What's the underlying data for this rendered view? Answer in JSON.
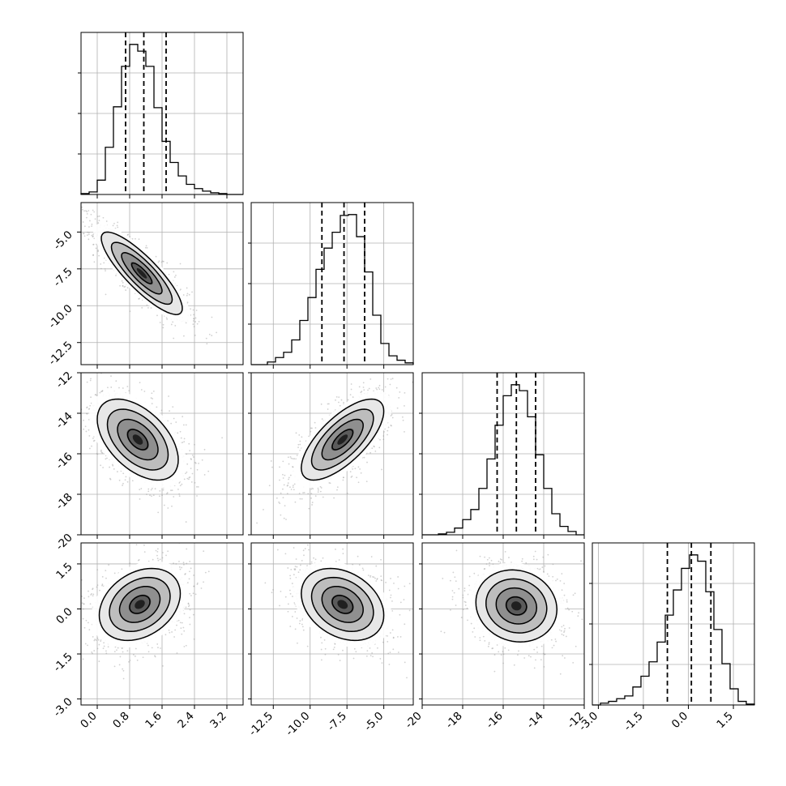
{
  "figure": {
    "type": "corner_plot",
    "n_params": 4,
    "grid": true,
    "colors": {
      "ink": "#000000",
      "grid": "#b0b0b0",
      "scatter": "#9a9a9a",
      "hist_fill": "#555555"
    }
  },
  "chart_data": [
    {
      "type": "histogram",
      "param": 0,
      "xlim": [
        -0.4,
        3.6
      ],
      "bins": [
        -0.4,
        -0.2,
        0.0,
        0.2,
        0.4,
        0.6,
        0.8,
        1.0,
        1.2,
        1.4,
        1.6,
        1.8,
        2.0,
        2.2,
        2.4,
        2.6,
        2.8,
        3.0,
        3.2,
        3.4,
        3.6
      ],
      "counts": [
        1,
        3,
        17,
        56,
        104,
        152,
        178,
        170,
        152,
        103,
        63,
        38,
        22,
        12,
        7,
        4,
        2,
        1,
        0,
        0
      ],
      "quantiles": [
        0.7,
        1.15,
        1.7
      ],
      "tick_labels": [
        "0.0",
        "0.8",
        "1.6",
        "2.4",
        "3.2"
      ],
      "tick_values": [
        0.0,
        0.8,
        1.6,
        2.4,
        3.2
      ]
    },
    {
      "type": "histogram",
      "param": 1,
      "xlim": [
        -14.0,
        -3.0
      ],
      "bins": [
        -14.0,
        -13.45,
        -12.9,
        -12.35,
        -11.8,
        -11.25,
        -10.7,
        -10.15,
        -9.6,
        -9.05,
        -8.5,
        -7.95,
        -7.4,
        -6.85,
        -6.3,
        -5.75,
        -5.2,
        -4.65,
        -4.1,
        -3.55,
        -3.0
      ],
      "counts": [
        0,
        0,
        3,
        8,
        14,
        28,
        50,
        76,
        108,
        132,
        150,
        169,
        170,
        145,
        105,
        56,
        24,
        10,
        5,
        2
      ],
      "quantiles": [
        -9.2,
        -7.7,
        -6.3
      ],
      "tick_labels": [
        "-12.5",
        "-10.0",
        "-7.5",
        "-5.0"
      ],
      "tick_values": [
        -12.5,
        -10.0,
        -7.5,
        -5.0
      ]
    },
    {
      "type": "histogram",
      "param": 2,
      "xlim": [
        -20.0,
        -12.0
      ],
      "bins": [
        -20.0,
        -19.6,
        -19.2,
        -18.8,
        -18.4,
        -18.0,
        -17.6,
        -17.2,
        -16.8,
        -16.4,
        -16.0,
        -15.6,
        -15.2,
        -14.8,
        -14.4,
        -14.0,
        -13.6,
        -13.2,
        -12.8,
        -12.4,
        -12.0
      ],
      "counts": [
        0,
        0,
        1,
        3,
        8,
        18,
        30,
        55,
        90,
        130,
        165,
        178,
        171,
        140,
        95,
        55,
        25,
        10,
        4,
        0
      ],
      "quantiles": [
        -16.3,
        -15.35,
        -14.4
      ],
      "tick_labels": [
        "-20",
        "-18",
        "-16",
        "-14",
        "-12"
      ],
      "tick_values": [
        -20,
        -18,
        -16,
        -14,
        -12
      ]
    },
    {
      "type": "histogram",
      "param": 3,
      "xlim": [
        -3.2,
        2.2
      ],
      "bins": [
        -3.2,
        -2.93,
        -2.66,
        -2.39,
        -2.12,
        -1.85,
        -1.58,
        -1.31,
        -1.04,
        -0.77,
        -0.5,
        -0.23,
        0.04,
        0.31,
        0.58,
        0.85,
        1.12,
        1.39,
        1.66,
        1.93,
        2.2
      ],
      "counts": [
        0,
        2,
        4,
        7,
        10,
        20,
        32,
        48,
        70,
        100,
        128,
        152,
        167,
        160,
        126,
        84,
        46,
        18,
        4,
        1
      ],
      "quantiles": [
        -0.7,
        0.1,
        0.75
      ],
      "tick_labels": [
        "-3.0",
        "-1.5",
        "0.0",
        "1.5"
      ],
      "tick_values": [
        -3.0,
        -1.5,
        0.0,
        1.5
      ]
    },
    {
      "type": "contour",
      "x_param": 0,
      "y_param": 1,
      "xlim": [
        -0.4,
        3.6
      ],
      "ylim": [
        -14.0,
        -3.0
      ],
      "mean": [
        1.1,
        -7.8
      ],
      "sd": [
        0.5,
        1.4
      ],
      "rho": -0.85,
      "levels": [
        0.5,
        1.0,
        1.5,
        2.0
      ]
    },
    {
      "type": "contour",
      "x_param": 0,
      "y_param": 2,
      "xlim": [
        -0.4,
        3.6
      ],
      "ylim": [
        -20.0,
        -12.0
      ],
      "mean": [
        1.0,
        -15.3
      ],
      "sd": [
        0.5,
        1.0
      ],
      "rho": -0.5,
      "levels": [
        0.5,
        1.0,
        1.5,
        2.0
      ]
    },
    {
      "type": "contour",
      "x_param": 1,
      "y_param": 2,
      "xlim": [
        -14.0,
        -3.0
      ],
      "ylim": [
        -20.0,
        -12.0
      ],
      "mean": [
        -7.8,
        -15.3
      ],
      "sd": [
        1.4,
        1.0
      ],
      "rho": 0.7,
      "levels": [
        0.5,
        1.0,
        1.5,
        2.0
      ]
    },
    {
      "type": "contour",
      "x_param": 0,
      "y_param": 3,
      "xlim": [
        -0.4,
        3.6
      ],
      "ylim": [
        -3.2,
        2.2
      ],
      "mean": [
        1.05,
        0.15
      ],
      "sd": [
        0.5,
        0.6
      ],
      "rho": 0.3,
      "levels": [
        0.5,
        1.0,
        1.5,
        2.0
      ]
    },
    {
      "type": "contour",
      "x_param": 1,
      "y_param": 3,
      "xlim": [
        -14.0,
        -3.0
      ],
      "ylim": [
        -3.2,
        2.2
      ],
      "mean": [
        -7.8,
        0.15
      ],
      "sd": [
        1.4,
        0.6
      ],
      "rho": -0.3,
      "levels": [
        0.5,
        1.0,
        1.5,
        2.0
      ]
    },
    {
      "type": "contour",
      "x_param": 2,
      "y_param": 3,
      "xlim": [
        -20.0,
        -12.0
      ],
      "ylim": [
        -3.2,
        2.2
      ],
      "mean": [
        -15.35,
        0.1
      ],
      "sd": [
        1.0,
        0.6
      ],
      "rho": -0.1,
      "levels": [
        0.5,
        1.0,
        1.5,
        2.0
      ]
    }
  ],
  "y_axis_labels": {
    "row1": {
      "labels": [
        "-5.0",
        "-7.5",
        "-10.0",
        "-12.5"
      ],
      "values": [
        -5.0,
        -7.5,
        -10.0,
        -12.5
      ]
    },
    "row2": {
      "labels": [
        "-12",
        "-14",
        "-16",
        "-18",
        "-20"
      ],
      "values": [
        -12,
        -14,
        -16,
        -18,
        -20
      ]
    },
    "row3": {
      "labels": [
        "1.5",
        "0.0",
        "-1.5",
        "-3.0"
      ],
      "values": [
        1.5,
        0.0,
        -1.5,
        -3.0
      ]
    }
  }
}
